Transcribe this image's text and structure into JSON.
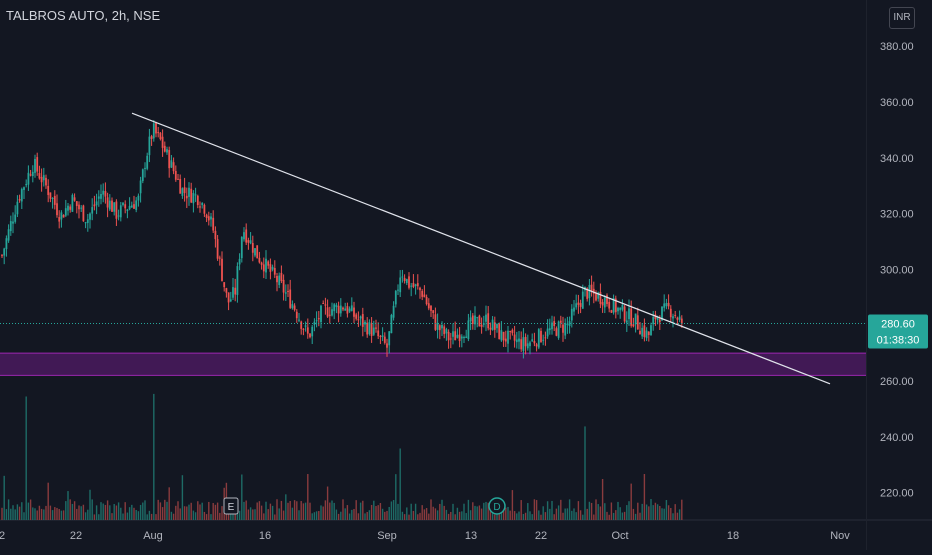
{
  "header": {
    "symbol_title": "TALBROS AUTO, 2h, NSE",
    "currency": "INR"
  },
  "price_label": {
    "price": "280.60",
    "countdown": "01:38:30"
  },
  "markers": {
    "earnings": "E",
    "dividend": "D"
  },
  "colors": {
    "background": "#131722",
    "up": "#26a69a",
    "down": "#ef5350",
    "up_volume": "#1e6b66",
    "down_volume": "#8a3b3e",
    "zone_fill": "#4a1a5e",
    "zone_border": "#9c27b0",
    "trendline": "#e0e3eb",
    "axis_text": "#b2b5be",
    "last_price": "#26a69a"
  },
  "chart_data": {
    "type": "candlestick",
    "title": "TALBROS AUTO, 2h, NSE",
    "currency": "INR",
    "y_axis": {
      "ticks": [
        "380.00",
        "360.00",
        "340.00",
        "320.00",
        "300.00",
        "260.00",
        "240.00",
        "220.00"
      ],
      "range": [
        208,
        384
      ]
    },
    "x_axis": {
      "ticks": [
        "2",
        "22",
        "Aug",
        "16",
        "Sep",
        "13",
        "22",
        "Oct",
        "18",
        "Nov"
      ]
    },
    "last_price": 280.6,
    "support_zone": [
      262,
      270
    ],
    "trendline": {
      "from": {
        "x": "Jul 30",
        "y": 356
      },
      "to": {
        "x": "Oct 30",
        "y": 259
      }
    },
    "price_path": [
      {
        "date": "Jul 2",
        "close": 310
      },
      {
        "date": "Jul 5",
        "close": 325
      },
      {
        "date": "Jul 9",
        "close": 338
      },
      {
        "date": "Jul 13",
        "close": 328
      },
      {
        "date": "Jul 16",
        "close": 319
      },
      {
        "date": "Jul 19",
        "close": 325
      },
      {
        "date": "Jul 22",
        "close": 318
      },
      {
        "date": "Jul 24",
        "close": 328
      },
      {
        "date": "Jul 26",
        "close": 320
      },
      {
        "date": "Jul 29",
        "close": 325
      },
      {
        "date": "Jul 30",
        "close": 340
      },
      {
        "date": "Aug 1",
        "close": 350
      },
      {
        "date": "Aug 2",
        "close": 346
      },
      {
        "date": "Aug 5",
        "close": 328
      },
      {
        "date": "Aug 7",
        "close": 326
      },
      {
        "date": "Aug 8",
        "close": 322
      },
      {
        "date": "Aug 9",
        "close": 315
      },
      {
        "date": "Aug 11",
        "close": 288
      },
      {
        "date": "Aug 12",
        "close": 292
      },
      {
        "date": "Aug 13",
        "close": 315
      },
      {
        "date": "Aug 15",
        "close": 305
      },
      {
        "date": "Aug 18",
        "close": 295
      },
      {
        "date": "Aug 20",
        "close": 287
      },
      {
        "date": "Aug 22",
        "close": 276
      },
      {
        "date": "Aug 24",
        "close": 285
      },
      {
        "date": "Aug 27",
        "close": 287
      },
      {
        "date": "Aug 29",
        "close": 282
      },
      {
        "date": "Aug 31",
        "close": 278
      },
      {
        "date": "Sep 2",
        "close": 272
      },
      {
        "date": "Sep 4",
        "close": 300
      },
      {
        "date": "Sep 5",
        "close": 295
      },
      {
        "date": "Sep 7",
        "close": 292
      },
      {
        "date": "Sep 9",
        "close": 280
      },
      {
        "date": "Sep 11",
        "close": 275
      },
      {
        "date": "Sep 14",
        "close": 280
      },
      {
        "date": "Sep 16",
        "close": 282
      },
      {
        "date": "Sep 18",
        "close": 276
      },
      {
        "date": "Sep 21",
        "close": 273
      },
      {
        "date": "Sep 24",
        "close": 278
      },
      {
        "date": "Sep 26",
        "close": 280
      },
      {
        "date": "Sep 28",
        "close": 292
      },
      {
        "date": "Sep 30",
        "close": 290
      },
      {
        "date": "Oct 2",
        "close": 285
      },
      {
        "date": "Oct 4",
        "close": 282
      },
      {
        "date": "Oct 6",
        "close": 276
      },
      {
        "date": "Oct 7",
        "close": 283
      },
      {
        "date": "Oct 9",
        "close": 286
      },
      {
        "date": "Oct 11",
        "close": 280.6
      }
    ],
    "volume_spikes": [
      {
        "date": "Jul 7",
        "value": 0.95
      },
      {
        "date": "Aug 1",
        "value": 0.97
      },
      {
        "date": "Aug 13",
        "value": 0.35
      },
      {
        "date": "Sep 4",
        "value": 0.55
      },
      {
        "date": "Sep 28",
        "value": 0.72
      },
      {
        "date": "Oct 11",
        "value": 0.55
      }
    ]
  }
}
